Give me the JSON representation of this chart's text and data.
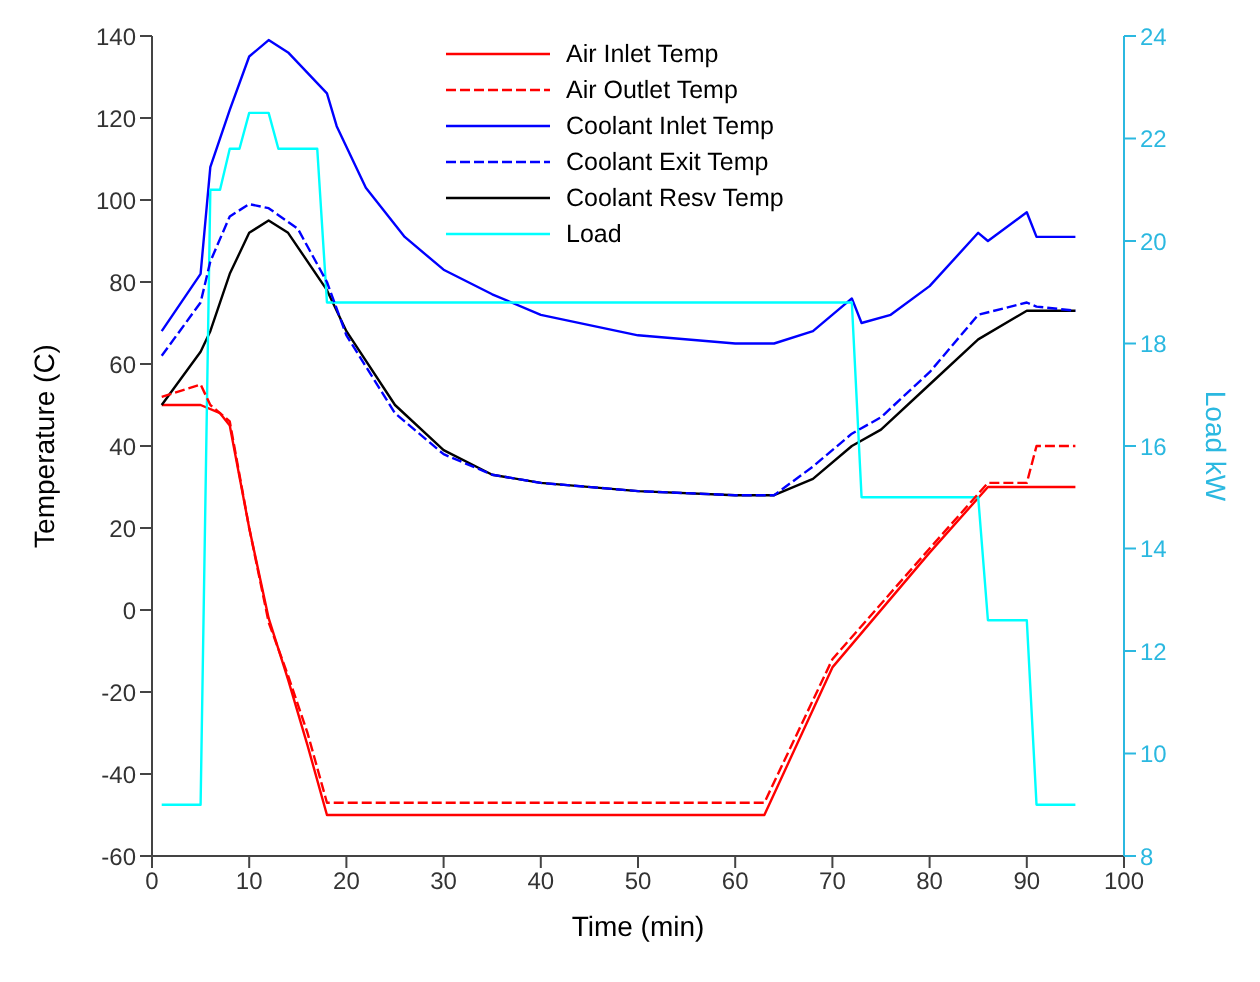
{
  "chart_data": {
    "type": "line",
    "xlabel": "Time (min)",
    "ylabel": "Temperature (C)",
    "y2label": "Load kW",
    "xlim": [
      0,
      100
    ],
    "xticks": [
      0,
      10,
      20,
      30,
      40,
      50,
      60,
      70,
      80,
      90,
      100
    ],
    "ylim": [
      -60,
      140
    ],
    "yticks": [
      -60,
      -40,
      -20,
      0,
      20,
      40,
      60,
      80,
      100,
      120,
      140
    ],
    "y2lim": [
      8,
      24
    ],
    "y2ticks": [
      8,
      10,
      12,
      14,
      16,
      18,
      20,
      22,
      24
    ],
    "grid": false,
    "legend": "top",
    "marker": "none",
    "series": [
      {
        "name": "Air Inlet Temp",
        "color": "#ff0000",
        "line_style": "solid",
        "x": [
          1,
          5,
          7,
          8,
          10,
          12,
          14,
          16,
          18,
          63,
          70,
          80,
          86,
          95
        ],
        "values": [
          50,
          50,
          48,
          45,
          20,
          -2,
          -17,
          -33,
          -50,
          -50,
          -14,
          14,
          30,
          30
        ]
      },
      {
        "name": "Air Outlet Temp",
        "color": "#ff0000",
        "line_style": "dashed",
        "x": [
          1,
          5,
          6,
          8,
          10,
          12,
          14,
          16,
          18,
          63,
          70,
          80,
          86,
          90,
          91,
          95
        ],
        "values": [
          52,
          55,
          50,
          46,
          20,
          -3,
          -16,
          -30,
          -47,
          -47,
          -12,
          15,
          31,
          31,
          40,
          40
        ]
      },
      {
        "name": "Coolant Inlet Temp",
        "color": "#0000ff",
        "line_style": "solid",
        "x": [
          1,
          5,
          6,
          8,
          10,
          12,
          14,
          18,
          19,
          22,
          26,
          30,
          35,
          40,
          50,
          60,
          64,
          68,
          72,
          73,
          76,
          80,
          85,
          86,
          90,
          91,
          95
        ],
        "values": [
          68,
          82,
          108,
          122,
          135,
          139,
          136,
          126,
          118,
          103,
          91,
          83,
          77,
          72,
          67,
          65,
          65,
          68,
          76,
          70,
          72,
          79,
          92,
          90,
          97,
          91,
          91
        ]
      },
      {
        "name": "Coolant Exit Temp",
        "color": "#0000ff",
        "line_style": "dashed",
        "x": [
          1,
          5,
          6,
          8,
          10,
          12,
          15,
          18,
          20,
          25,
          30,
          35,
          40,
          50,
          60,
          64,
          68,
          72,
          75,
          80,
          85,
          90,
          91,
          95
        ],
        "values": [
          62,
          75,
          85,
          96,
          99,
          98,
          93,
          80,
          67,
          48,
          38,
          33,
          31,
          29,
          28,
          28,
          35,
          43,
          47,
          58,
          72,
          75,
          74,
          73
        ]
      },
      {
        "name": "Coolant Resv Temp",
        "color": "#000000",
        "line_style": "solid",
        "x": [
          1,
          5,
          6,
          8,
          10,
          12,
          14,
          18,
          20,
          25,
          30,
          35,
          40,
          50,
          60,
          64,
          68,
          72,
          75,
          80,
          85,
          90,
          95
        ],
        "values": [
          50,
          63,
          68,
          82,
          92,
          95,
          92,
          78,
          68,
          50,
          39,
          33,
          31,
          29,
          28,
          28,
          32,
          40,
          44,
          55,
          66,
          73,
          73
        ]
      },
      {
        "name": "Load",
        "color": "#00ffff",
        "line_style": "solid",
        "axis": "y2",
        "x": [
          1,
          5,
          6,
          7,
          8,
          9,
          10,
          12,
          13,
          17,
          18,
          72,
          73,
          85,
          86,
          90,
          91,
          95
        ],
        "values": [
          9,
          9,
          21,
          21,
          21.8,
          21.8,
          22.5,
          22.5,
          21.8,
          21.8,
          18.8,
          18.8,
          15,
          15,
          12.6,
          12.6,
          9,
          9
        ]
      }
    ]
  }
}
